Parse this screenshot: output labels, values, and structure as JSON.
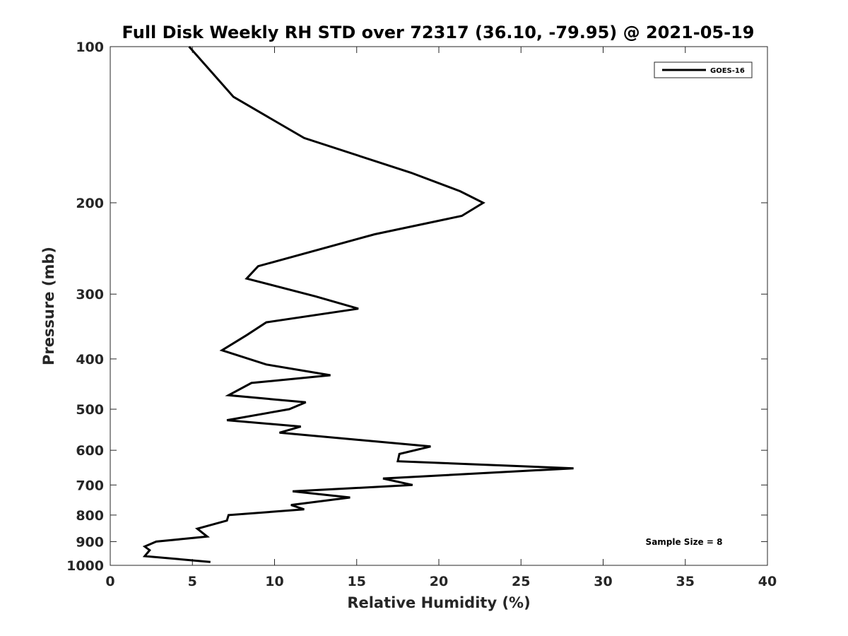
{
  "chart_data": {
    "type": "line",
    "title": "Full Disk Weekly RH STD over 72317 (36.10, -79.95) @ 2021-05-19",
    "xlabel": "Relative Humidity (%)",
    "ylabel": "Pressure (mb)",
    "xlim": [
      0,
      40
    ],
    "ylim": [
      100,
      1000
    ],
    "y_scale": "log",
    "y_reversed": true,
    "xticks": [
      0,
      5,
      10,
      15,
      20,
      25,
      30,
      35,
      40
    ],
    "yticks": [
      100,
      200,
      300,
      400,
      500,
      600,
      700,
      800,
      900,
      1000
    ],
    "grid": false,
    "legend_position": "top-right",
    "annotation": "Sample Size = 8",
    "series": [
      {
        "name": "GOES-16",
        "color": "#000000",
        "points": [
          [
            4.8,
            100
          ],
          [
            7.5,
            125
          ],
          [
            11.8,
            150
          ],
          [
            18.3,
            175
          ],
          [
            21.3,
            190
          ],
          [
            22.7,
            200
          ],
          [
            21.4,
            212
          ],
          [
            16.1,
            230
          ],
          [
            9.0,
            265
          ],
          [
            8.3,
            280
          ],
          [
            12.5,
            303
          ],
          [
            15.1,
            320
          ],
          [
            9.5,
            340
          ],
          [
            8.3,
            360
          ],
          [
            6.8,
            385
          ],
          [
            9.5,
            410
          ],
          [
            13.4,
            430
          ],
          [
            8.6,
            445
          ],
          [
            7.2,
            470
          ],
          [
            11.9,
            485
          ],
          [
            10.9,
            500
          ],
          [
            7.1,
            525
          ],
          [
            11.6,
            540
          ],
          [
            10.3,
            555
          ],
          [
            19.5,
            590
          ],
          [
            17.6,
            610
          ],
          [
            17.5,
            630
          ],
          [
            28.2,
            650
          ],
          [
            16.6,
            680
          ],
          [
            18.4,
            700
          ],
          [
            11.1,
            720
          ],
          [
            14.6,
            740
          ],
          [
            11.0,
            765
          ],
          [
            11.8,
            780
          ],
          [
            7.2,
            800
          ],
          [
            7.1,
            820
          ],
          [
            5.3,
            850
          ],
          [
            5.9,
            880
          ],
          [
            2.8,
            900
          ],
          [
            2.1,
            920
          ],
          [
            2.4,
            935
          ],
          [
            2.1,
            960
          ],
          [
            6.1,
            985
          ]
        ]
      }
    ]
  }
}
